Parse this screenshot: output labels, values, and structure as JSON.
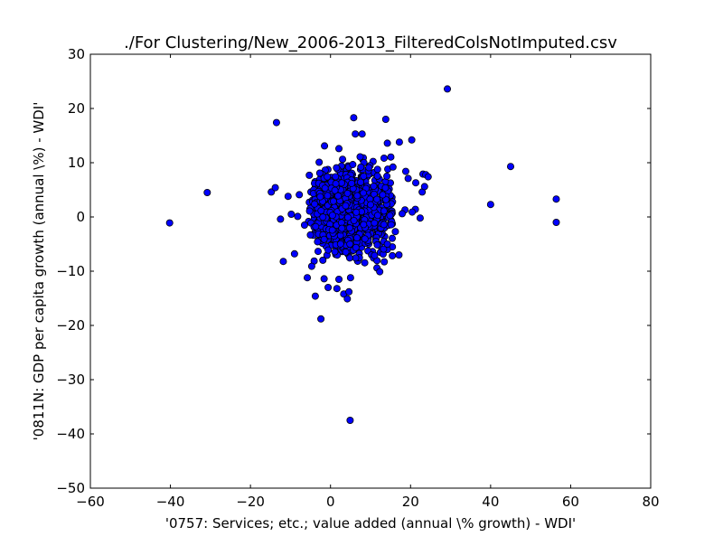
{
  "chart_data": {
    "type": "scatter",
    "title": "./For Clustering/New_2006-2013_FilteredColsNotImputed.csv",
    "xlabel": "'0757: Services; etc.; value added  (annual \\% growth) - WDI'",
    "ylabel": "'0811N: GDP per capita growth  (annual \\%) - WDI'",
    "xlim": [
      -60,
      80
    ],
    "ylim": [
      -50,
      30
    ],
    "xticks": [
      -60,
      -40,
      -20,
      0,
      20,
      40,
      60,
      80
    ],
    "yticks": [
      -50,
      -40,
      -30,
      -20,
      -10,
      0,
      10,
      20,
      30
    ],
    "xtick_labels": [
      "−60",
      "−40",
      "−20",
      "0",
      "20",
      "40",
      "60",
      "80"
    ],
    "ytick_labels": [
      "−50",
      "−40",
      "−30",
      "−20",
      "−10",
      "0",
      "10",
      "20",
      "30"
    ],
    "grid": false,
    "marker_color": "#0000ff",
    "marker_edge": "#000000",
    "outliers": [
      [
        -40.2,
        -1.1
      ],
      [
        -30.8,
        4.5
      ],
      [
        -13.5,
        17.4
      ],
      [
        -14.8,
        4.6
      ],
      [
        -13.8,
        5.4
      ],
      [
        -12.5,
        -0.4
      ],
      [
        -11.8,
        -8.2
      ],
      [
        -10.6,
        3.8
      ],
      [
        -9.8,
        0.5
      ],
      [
        -9.0,
        -6.8
      ],
      [
        -8.2,
        0.1
      ],
      [
        -7.8,
        4.1
      ],
      [
        -6.5,
        -1.5
      ],
      [
        -5.8,
        -11.2
      ],
      [
        -4.7,
        -9.1
      ],
      [
        -3.8,
        -14.6
      ],
      [
        -2.4,
        -18.8
      ],
      [
        -1.6,
        -11.4
      ],
      [
        -0.6,
        -13.0
      ],
      [
        1.6,
        -13.2
      ],
      [
        2.1,
        -11.5
      ],
      [
        3.3,
        -14.2
      ],
      [
        4.2,
        -15.1
      ],
      [
        4.6,
        -13.8
      ],
      [
        5.0,
        -11.2
      ],
      [
        4.9,
        -37.5
      ],
      [
        -1.5,
        13.1
      ],
      [
        2.1,
        12.6
      ],
      [
        5.8,
        18.3
      ],
      [
        6.2,
        15.3
      ],
      [
        7.9,
        15.3
      ],
      [
        13.8,
        18.0
      ],
      [
        14.2,
        13.6
      ],
      [
        17.2,
        13.8
      ],
      [
        20.3,
        14.2
      ],
      [
        29.2,
        23.6
      ],
      [
        15.6,
        9.2
      ],
      [
        18.8,
        8.4
      ],
      [
        19.4,
        7.1
      ],
      [
        21.3,
        6.3
      ],
      [
        23.1,
        7.9
      ],
      [
        23.8,
        7.8
      ],
      [
        24.4,
        7.4
      ],
      [
        22.9,
        4.6
      ],
      [
        23.5,
        5.6
      ],
      [
        21.2,
        1.4
      ],
      [
        20.4,
        0.9
      ],
      [
        22.4,
        -0.2
      ],
      [
        18.6,
        1.3
      ],
      [
        17.9,
        0.6
      ],
      [
        16.2,
        -2.7
      ],
      [
        17.1,
        -7.0
      ],
      [
        14.2,
        -5.0
      ],
      [
        11.6,
        -9.4
      ],
      [
        12.3,
        -10.1
      ],
      [
        11.0,
        -7.1
      ],
      [
        40.0,
        2.3
      ],
      [
        45.0,
        9.3
      ],
      [
        56.4,
        3.3
      ],
      [
        56.4,
        -1.0
      ]
    ],
    "core_cluster": {
      "count": 1100,
      "seed": 20131,
      "center": [
        4.5,
        1.0
      ],
      "std": [
        5.6,
        3.9
      ],
      "xrange": [
        -5.5,
        15.5
      ],
      "yrange": [
        -8.5,
        11.5
      ]
    }
  }
}
